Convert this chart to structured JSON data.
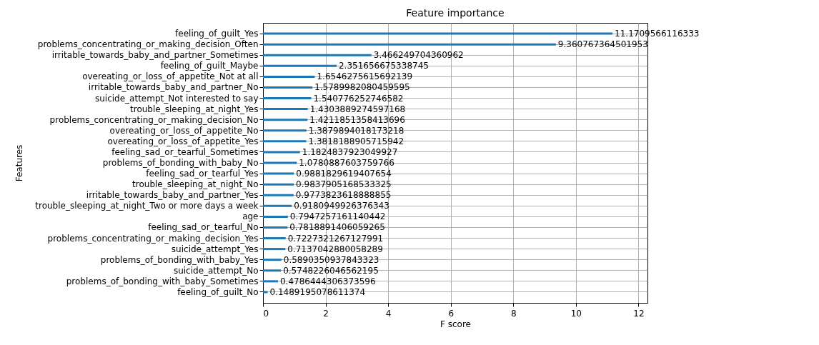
{
  "chart_data": {
    "type": "bar",
    "orientation": "horizontal",
    "title": "Feature importance",
    "xlabel": "F score",
    "ylabel": "Features",
    "categories": [
      "feeling_of_guilt_Yes",
      "problems_concentrating_or_making_decision_Often",
      "irritable_towards_baby_and_partner_Sometimes",
      "feeling_of_guilt_Maybe",
      "overeating_or_loss_of_appetite_Not at all",
      "irritable_towards_baby_and_partner_No",
      "suicide_attempt_Not interested to say",
      "trouble_sleeping_at_night_Yes",
      "problems_concentrating_or_making_decision_No",
      "overeating_or_loss_of_appetite_No",
      "overeating_or_loss_of_appetite_Yes",
      "feeling_sad_or_tearful_Sometimes",
      "problems_of_bonding_with_baby_No",
      "feeling_sad_or_tearful_Yes",
      "trouble_sleeping_at_night_No",
      "irritable_towards_baby_and_partner_Yes",
      "trouble_sleeping_at_night_Two or more days a week",
      "age",
      "feeling_sad_or_tearful_No",
      "problems_concentrating_or_making_decision_Yes",
      "suicide_attempt_Yes",
      "problems_of_bonding_with_baby_Yes",
      "suicide_attempt_No",
      "problems_of_bonding_with_baby_Sometimes",
      "feeling_of_guilt_No"
    ],
    "values": [
      11.1709566116333,
      9.360767364501953,
      3.466249704360962,
      2.351656675338745,
      1.6546275615692139,
      1.5789982080459595,
      1.540776252746582,
      1.4303889274597168,
      1.4211851358413696,
      1.3879894018173218,
      1.3818188905715942,
      1.1824837923049927,
      1.0780887603759766,
      0.9881829619407654,
      0.9837905168533325,
      0.9773823618888855,
      0.9180949926376343,
      0.7947257161140442,
      0.7818891406059265,
      0.7227321267127991,
      0.7137042880058289,
      0.5890350937843323,
      0.5748226046562195,
      0.4786444306373596,
      0.1489195078611374
    ],
    "color": "#1f77b4",
    "xlim": [
      0,
      12.288
    ],
    "xticks": [
      0,
      2,
      4,
      6,
      8,
      10,
      12
    ],
    "grid": true,
    "data_labels": true
  }
}
